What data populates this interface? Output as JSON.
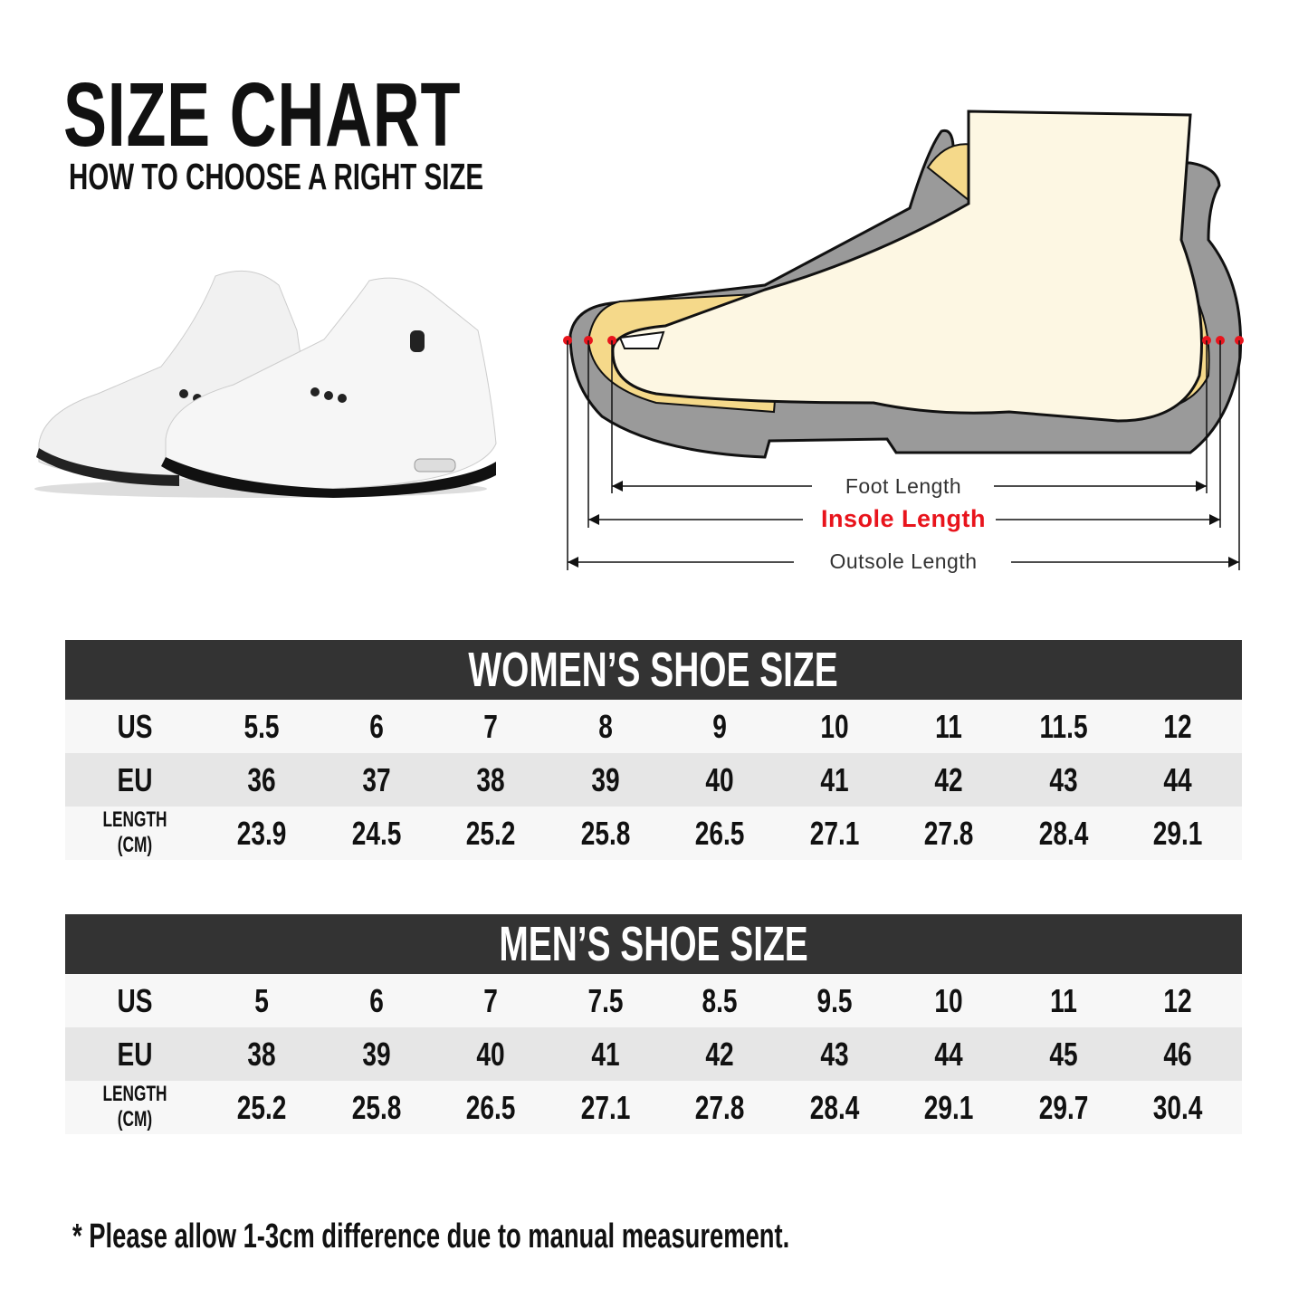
{
  "header": {
    "title": "SIZE CHART",
    "subtitle": "HOW TO CHOOSE A RIGHT SIZE"
  },
  "diagram": {
    "foot_length": "Foot Length",
    "insole_length": "Insole Length",
    "outsole_length": "Outsole Length",
    "insole_color": "#e8141c",
    "marker_color": "#e8141c"
  },
  "women": {
    "title": "WOMEN’S SHOE SIZE",
    "rows": [
      {
        "label": "US",
        "values": [
          "5.5",
          "6",
          "7",
          "8",
          "9",
          "10",
          "11",
          "11.5",
          "12"
        ]
      },
      {
        "label": "EU",
        "values": [
          "36",
          "37",
          "38",
          "39",
          "40",
          "41",
          "42",
          "43",
          "44"
        ]
      },
      {
        "label": "LENGTH (CM)",
        "values": [
          "23.9",
          "24.5",
          "25.2",
          "25.8",
          "26.5",
          "27.1",
          "27.8",
          "28.4",
          "29.1"
        ]
      }
    ]
  },
  "men": {
    "title": "MEN’S SHOE SIZE",
    "rows": [
      {
        "label": "US",
        "values": [
          "5",
          "6",
          "7",
          "7.5",
          "8.5",
          "9.5",
          "10",
          "11",
          "12"
        ]
      },
      {
        "label": "EU",
        "values": [
          "38",
          "39",
          "40",
          "41",
          "42",
          "43",
          "44",
          "45",
          "46"
        ]
      },
      {
        "label": "LENGTH (CM)",
        "values": [
          "25.2",
          "25.8",
          "26.5",
          "27.1",
          "27.8",
          "28.4",
          "29.1",
          "29.7",
          "30.4"
        ]
      }
    ]
  },
  "footnote": "* Please allow 1-3cm difference due to manual measurement."
}
